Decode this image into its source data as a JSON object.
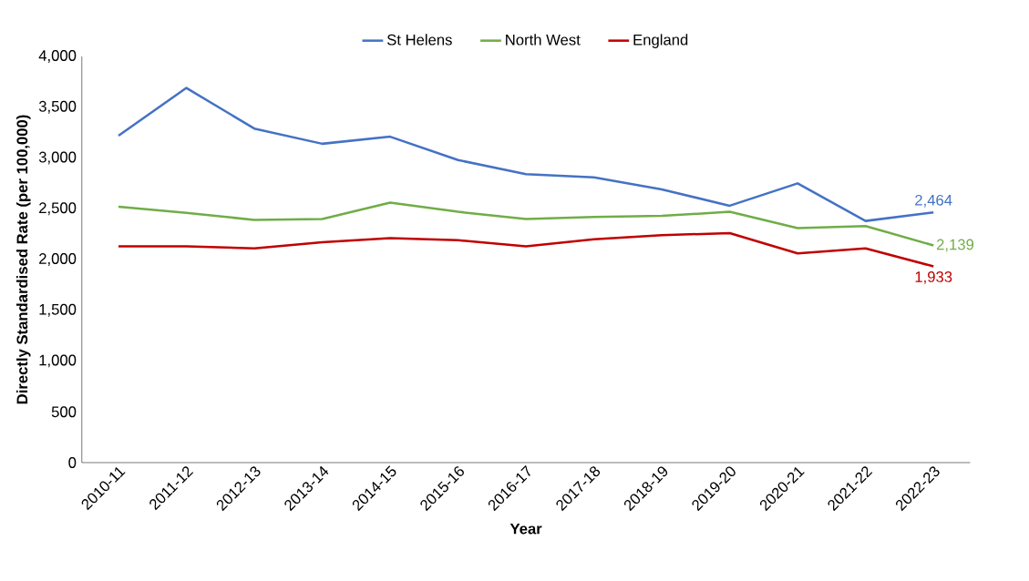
{
  "chart_data": {
    "type": "line",
    "xlabel": "Year",
    "ylabel": "Directly Standardised Rate (per 100,000)",
    "categories": [
      "2010-11",
      "2011-12",
      "2012-13",
      "2013-14",
      "2014-15",
      "2015-16",
      "2016-17",
      "2017-18",
      "2018-19",
      "2019-20",
      "2020-21",
      "2021-22",
      "2022-23"
    ],
    "series": [
      {
        "name": "St Helens",
        "color": "#4472c4",
        "values": [
          3220,
          3690,
          3290,
          3140,
          3210,
          2980,
          2840,
          2810,
          2690,
          2530,
          2750,
          2380,
          2464
        ],
        "value_labels": [
          null,
          null,
          null,
          null,
          null,
          null,
          null,
          null,
          null,
          null,
          null,
          null,
          "2,464"
        ]
      },
      {
        "name": "North West",
        "color": "#70ad47",
        "values": [
          2520,
          2460,
          2390,
          2400,
          2560,
          2470,
          2400,
          2420,
          2430,
          2470,
          2310,
          2330,
          2139
        ],
        "value_labels": [
          null,
          null,
          null,
          null,
          null,
          null,
          null,
          null,
          null,
          null,
          null,
          null,
          "2,139"
        ]
      },
      {
        "name": "England",
        "color": "#c00000",
        "values": [
          2130,
          2130,
          2110,
          2170,
          2210,
          2190,
          2130,
          2200,
          2240,
          2260,
          2060,
          2110,
          1933
        ],
        "value_labels": [
          null,
          null,
          null,
          null,
          null,
          null,
          null,
          null,
          null,
          null,
          null,
          null,
          "1,933"
        ]
      }
    ],
    "ylim": [
      0,
      4000
    ],
    "yticks": [
      {
        "value": 0,
        "label": "0"
      },
      {
        "value": 500,
        "label": "500"
      },
      {
        "value": 1000,
        "label": "1,000"
      },
      {
        "value": 1500,
        "label": "1,500"
      },
      {
        "value": 2000,
        "label": "2,000"
      },
      {
        "value": 2500,
        "label": "2,500"
      },
      {
        "value": 3000,
        "label": "3,000"
      },
      {
        "value": 3500,
        "label": "3,500"
      },
      {
        "value": 4000,
        "label": "4,000"
      }
    ],
    "legend": "top",
    "grid": false,
    "marker": "none",
    "line_style": "solid"
  }
}
